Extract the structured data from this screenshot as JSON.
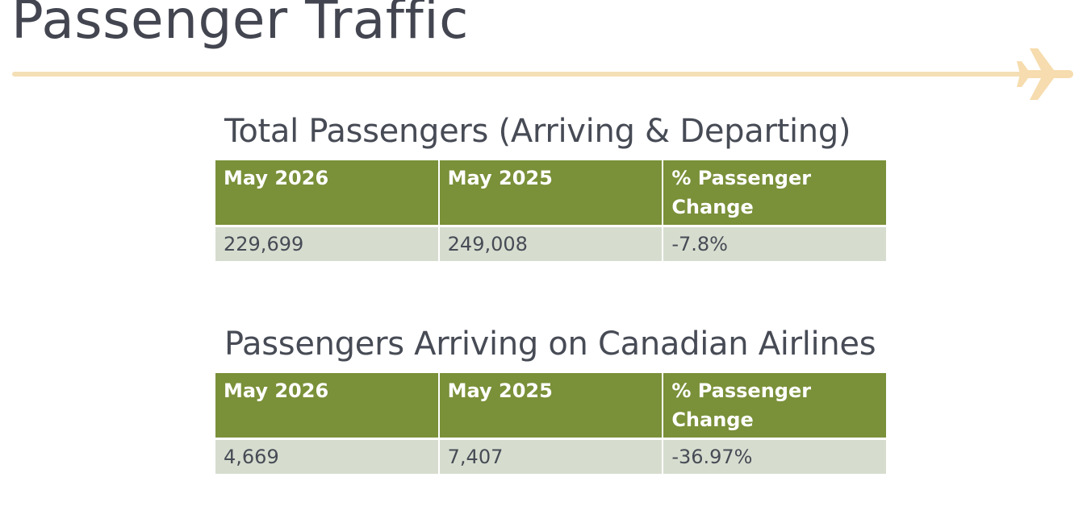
{
  "header": {
    "title": "Passenger Traffic"
  },
  "tables": [
    {
      "heading": "Total Passengers (Arriving & Departing)",
      "columns": [
        "May 2026",
        "May 2025",
        "% Passenger Change"
      ],
      "rows": [
        [
          "229,699",
          "249,008",
          "-7.8%"
        ]
      ]
    },
    {
      "heading": "Passengers Arriving on Canadian Airlines",
      "columns": [
        "May 2026",
        "May 2025",
        "% Passenger Change"
      ],
      "rows": [
        [
          "4,669",
          "7,407",
          "-36.97%"
        ]
      ]
    }
  ]
}
